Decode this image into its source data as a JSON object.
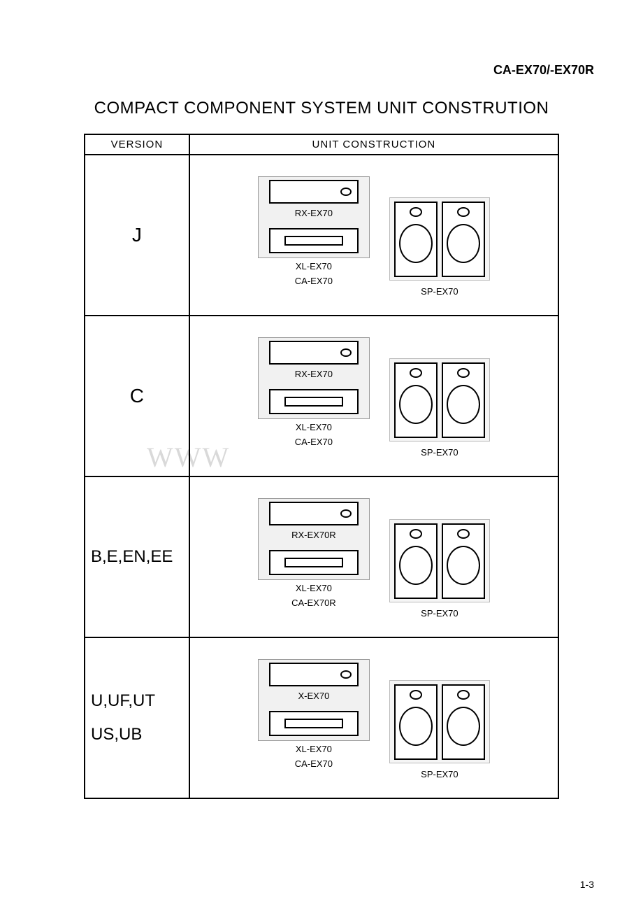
{
  "model_header": "CA-EX70/-EX70R",
  "title": "COMPACT COMPONENT SYSTEM UNIT CONSTRUTION",
  "watermark": "WWW",
  "page_number": "1-3",
  "table": {
    "headers": {
      "version": "VERSION",
      "unit": "UNIT  CONSTRUCTION"
    },
    "rows": [
      {
        "version_lines": [
          "J"
        ],
        "align": "center",
        "rx": "RX-EX70",
        "xl": "XL-EX70",
        "ca": "CA-EX70",
        "sp": "SP-EX70"
      },
      {
        "version_lines": [
          "C"
        ],
        "align": "center",
        "rx": "RX-EX70",
        "xl": "XL-EX70",
        "ca": "CA-EX70",
        "sp": "SP-EX70"
      },
      {
        "version_lines": [
          "B,E,EN,EE"
        ],
        "align": "left",
        "rx": "RX-EX70R",
        "xl": "XL-EX70",
        "ca": "CA-EX70R",
        "sp": "SP-EX70"
      },
      {
        "version_lines": [
          "U,UF,UT",
          "US,UB"
        ],
        "align": "left",
        "rx": "X-EX70",
        "xl": "XL-EX70",
        "ca": "CA-EX70",
        "sp": "SP-EX70"
      }
    ]
  },
  "colors": {
    "page_bg": "#ffffff",
    "text": "#000000",
    "border": "#000000",
    "box_bg": "#f1f1f1",
    "box_border": "#999999",
    "watermark": "#d9d9d9"
  }
}
